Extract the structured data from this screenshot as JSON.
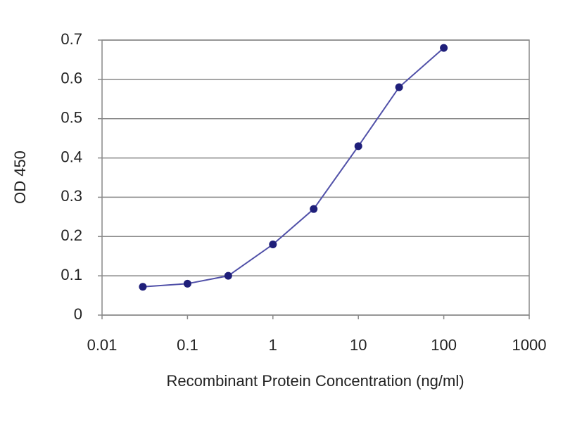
{
  "chart_data": {
    "type": "line",
    "xlabel": "Recombinant Protein Concentration (ng/ml)",
    "ylabel": "OD 450",
    "x": [
      0.03,
      0.1,
      0.3,
      1,
      3,
      10,
      30,
      100
    ],
    "series": [
      {
        "name": "OD 450",
        "color": "#1f1f7a",
        "line_color": "#5050a8",
        "values": [
          0.072,
          0.08,
          0.1,
          0.18,
          0.27,
          0.43,
          0.58,
          0.68
        ]
      }
    ],
    "xscale": "log",
    "xlim": [
      0.01,
      1000
    ],
    "xticks": [
      0.01,
      0.1,
      1,
      10,
      100,
      1000
    ],
    "ylim": [
      0,
      0.7
    ],
    "yticks": [
      0,
      0.1,
      0.2,
      0.3,
      0.4,
      0.5,
      0.6,
      0.7
    ],
    "grid": "y"
  }
}
